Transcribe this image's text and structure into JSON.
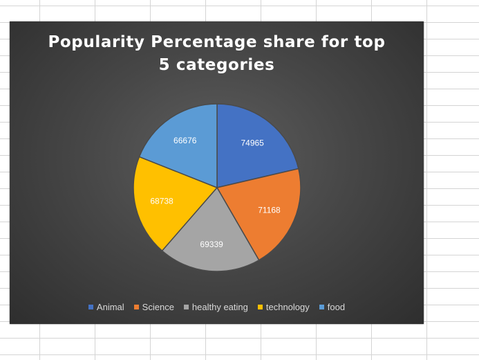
{
  "chart_data": {
    "type": "pie",
    "title_lines": [
      "Popularity Percentage share for top",
      "5 categories"
    ],
    "categories": [
      "Animal",
      "Science",
      "healthy eating",
      "technology",
      "food"
    ],
    "values": [
      74965,
      71168,
      69339,
      68738,
      66676
    ],
    "colors": [
      "#4472c4",
      "#ed7d31",
      "#a5a5a5",
      "#ffc000",
      "#5b9bd5"
    ],
    "data_labels": [
      "74965",
      "71168",
      "69339",
      "68738",
      "66676"
    ],
    "legend_position": "bottom",
    "start_angle": "top, clockwise"
  },
  "background": {
    "spreadsheet_grid": true,
    "chart_fill": "#474747"
  }
}
